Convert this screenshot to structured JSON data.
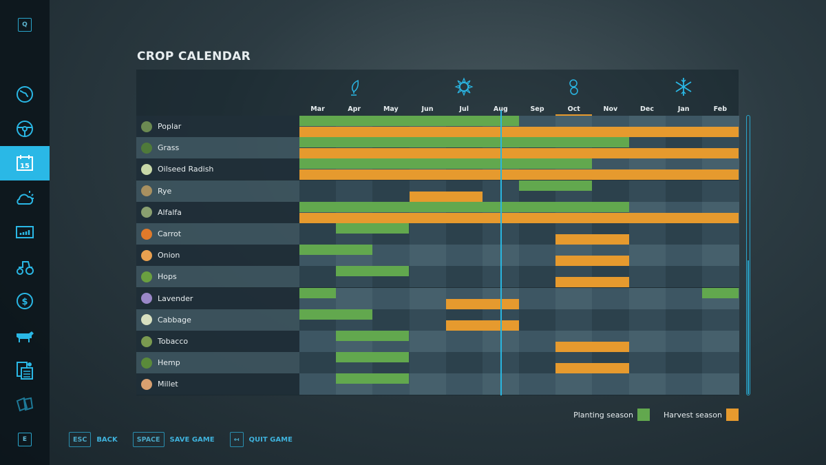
{
  "sidebar": {
    "top_key": "Q",
    "bottom_key": "E",
    "items": [
      {
        "name": "map",
        "icon": "globe-icon"
      },
      {
        "name": "vehicles",
        "icon": "steering-wheel-icon"
      },
      {
        "name": "calendar",
        "icon": "calendar-icon",
        "label": "15",
        "active": true
      },
      {
        "name": "weather",
        "icon": "weather-icon"
      },
      {
        "name": "statistics",
        "icon": "chart-icon"
      },
      {
        "name": "garage",
        "icon": "tractor-icon"
      },
      {
        "name": "finances",
        "icon": "dollar-icon"
      },
      {
        "name": "animals",
        "icon": "cow-icon"
      },
      {
        "name": "contracts",
        "icon": "contracts-icon"
      },
      {
        "name": "help",
        "icon": "papers-icon"
      }
    ]
  },
  "title": "CROP CALENDAR",
  "months": [
    "Mar",
    "Apr",
    "May",
    "Jun",
    "Jul",
    "Aug",
    "Sep",
    "Oct",
    "Nov",
    "Dec",
    "Jan",
    "Feb"
  ],
  "current_month_index": 7,
  "current_time_month_position": 5.5,
  "seasons": [
    {
      "name": "spring",
      "icon": "sprout-icon"
    },
    {
      "name": "summer",
      "icon": "sun-icon"
    },
    {
      "name": "autumn",
      "icon": "leaves-icon"
    },
    {
      "name": "winter",
      "icon": "snowflake-icon"
    }
  ],
  "colors": {
    "planting": "#62a84e",
    "harvest": "#e69a2e",
    "accent": "#2ab8e6"
  },
  "crops": [
    {
      "name": "Poplar",
      "color": "#6b8a52",
      "planting": [
        [
          0,
          6
        ]
      ],
      "harvest": [
        [
          0,
          12
        ]
      ]
    },
    {
      "name": "Grass",
      "color": "#4f7a3a",
      "planting": [
        [
          0,
          9
        ]
      ],
      "harvest": [
        [
          0,
          12
        ]
      ]
    },
    {
      "name": "Oilseed Radish",
      "color": "#c8d8a8",
      "planting": [
        [
          0,
          8
        ]
      ],
      "harvest": [
        [
          0,
          12
        ]
      ]
    },
    {
      "name": "Rye",
      "color": "#a89060",
      "planting": [
        [
          6,
          8
        ]
      ],
      "harvest": [
        [
          3,
          5
        ]
      ]
    },
    {
      "name": "Alfalfa",
      "color": "#8aa070",
      "planting": [
        [
          0,
          9
        ]
      ],
      "harvest": [
        [
          0,
          12
        ]
      ]
    },
    {
      "name": "Carrot",
      "color": "#e07a2a",
      "planting": [
        [
          1,
          3
        ]
      ],
      "harvest": [
        [
          7,
          9
        ]
      ]
    },
    {
      "name": "Onion",
      "color": "#e8a050",
      "planting": [
        [
          0,
          2
        ]
      ],
      "harvest": [
        [
          7,
          9
        ]
      ]
    },
    {
      "name": "Hops",
      "color": "#6aa040",
      "planting": [
        [
          1,
          3
        ]
      ],
      "harvest": [
        [
          7,
          9
        ]
      ]
    },
    {
      "name": "Lavender",
      "color": "#9a88c8",
      "planting": [
        [
          0,
          1
        ],
        [
          11,
          12
        ]
      ],
      "harvest": [
        [
          4,
          6
        ]
      ]
    },
    {
      "name": "Cabbage",
      "color": "#d8e0c0",
      "planting": [
        [
          0,
          2
        ]
      ],
      "harvest": [
        [
          4,
          6
        ]
      ]
    },
    {
      "name": "Tobacco",
      "color": "#7a9a50",
      "planting": [
        [
          1,
          3
        ]
      ],
      "harvest": [
        [
          7,
          9
        ]
      ]
    },
    {
      "name": "Hemp",
      "color": "#5a8a3a",
      "planting": [
        [
          1,
          3
        ]
      ],
      "harvest": [
        [
          7,
          9
        ]
      ]
    },
    {
      "name": "Millet",
      "color": "#d8a070",
      "planting": [
        [
          1,
          3
        ]
      ],
      "harvest": []
    }
  ],
  "legend": {
    "planting": "Planting season",
    "harvest": "Harvest season"
  },
  "bottom": [
    {
      "key": "ESC",
      "label": "BACK"
    },
    {
      "key": "SPACE",
      "label": "SAVE GAME"
    },
    {
      "key": "↤",
      "label": "QUIT GAME"
    }
  ]
}
